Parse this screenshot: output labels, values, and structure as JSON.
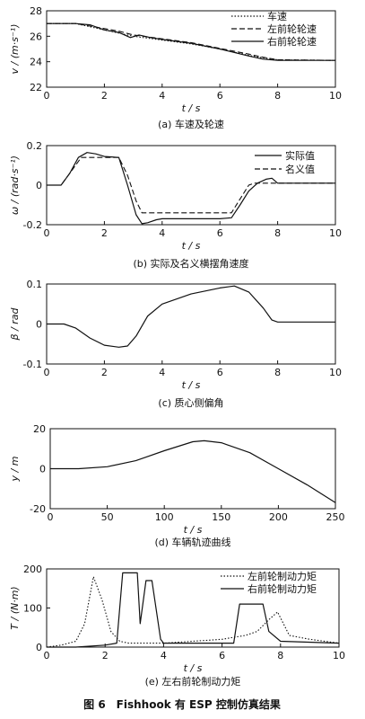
{
  "figure_caption": "图 6　Fishhook 有 ESP 控制仿真结果",
  "chart_data": [
    {
      "type": "line",
      "caption": "(a)  车速及轮速",
      "xlabel": "t / s",
      "ylabel": "v / (m·s⁻¹)",
      "xlim": [
        0,
        10
      ],
      "ylim": [
        22,
        28
      ],
      "xticks": [
        0,
        2,
        4,
        6,
        8,
        10
      ],
      "yticks": [
        22,
        24,
        26,
        28
      ],
      "legend_position": "top-right",
      "series": [
        {
          "name": "车速",
          "style": "dotted",
          "x": [
            0,
            1,
            2,
            3,
            4,
            5,
            6,
            7,
            7.5,
            8,
            10
          ],
          "y": [
            27,
            27,
            26.5,
            26,
            25.7,
            25.4,
            25,
            24.5,
            24.3,
            24.15,
            24.1
          ]
        },
        {
          "name": "左前轮轮速",
          "style": "dashed",
          "x": [
            0,
            1,
            1.5,
            2,
            2.5,
            3,
            4,
            5,
            6,
            7,
            7.5,
            8,
            10
          ],
          "y": [
            27,
            27,
            26.8,
            26.6,
            26.4,
            26.1,
            25.8,
            25.5,
            25.05,
            24.6,
            24.35,
            24.15,
            24.1
          ]
        },
        {
          "name": "右前轮轮速",
          "style": "solid",
          "x": [
            0,
            1,
            1.5,
            2,
            2.5,
            2.9,
            3.2,
            3.6,
            4,
            5,
            6,
            7,
            7.5,
            8,
            10
          ],
          "y": [
            27,
            27,
            26.9,
            26.5,
            26.3,
            25.9,
            26.1,
            25.9,
            25.75,
            25.45,
            25.0,
            24.45,
            24.2,
            24.1,
            24.1
          ]
        }
      ]
    },
    {
      "type": "line",
      "caption": "(b)  实际及名义横摆角速度",
      "xlabel": "t / s",
      "ylabel": "ω / (rad·s⁻¹)",
      "xlim": [
        0,
        10
      ],
      "ylim": [
        -0.2,
        0.2
      ],
      "xticks": [
        0,
        2,
        4,
        6,
        8,
        10
      ],
      "yticks": [
        -0.2,
        0,
        0.2
      ],
      "legend_position": "top-right",
      "series": [
        {
          "name": "实际值",
          "style": "solid",
          "x": [
            0,
            0.5,
            0.8,
            1.1,
            1.4,
            1.7,
            2.0,
            2.5,
            2.8,
            3.1,
            3.3,
            3.5,
            3.8,
            4,
            5,
            6,
            6.4,
            6.7,
            7.0,
            7.3,
            7.6,
            7.8,
            8.0,
            10
          ],
          "y": [
            0,
            0,
            0.06,
            0.14,
            0.165,
            0.158,
            0.145,
            0.14,
            0.0,
            -0.15,
            -0.195,
            -0.19,
            -0.175,
            -0.17,
            -0.17,
            -0.17,
            -0.165,
            -0.1,
            -0.03,
            0.01,
            0.03,
            0.035,
            0.01,
            0.01
          ]
        },
        {
          "name": "名义值",
          "style": "dashed",
          "x": [
            0,
            0.5,
            0.9,
            1.2,
            2.5,
            2.8,
            3.1,
            3.3,
            6.4,
            6.7,
            7.0,
            7.2,
            10
          ],
          "y": [
            0,
            0,
            0.08,
            0.14,
            0.14,
            0.05,
            -0.08,
            -0.14,
            -0.14,
            -0.07,
            0,
            0.01,
            0.01
          ]
        }
      ]
    },
    {
      "type": "line",
      "caption": "(c)  质心侧偏角",
      "xlabel": "t / s",
      "ylabel": "β / rad",
      "xlim": [
        0,
        10
      ],
      "ylim": [
        -0.1,
        0.1
      ],
      "xticks": [
        0,
        2,
        4,
        6,
        8,
        10
      ],
      "yticks": [
        -0.1,
        0,
        0.1
      ],
      "series": [
        {
          "name": "",
          "style": "solid",
          "x": [
            0,
            0.6,
            1,
            1.5,
            2,
            2.5,
            2.8,
            3.1,
            3.5,
            4,
            5,
            6,
            6.5,
            7.0,
            7.5,
            7.8,
            8,
            10
          ],
          "y": [
            0,
            0,
            -0.01,
            -0.035,
            -0.053,
            -0.058,
            -0.055,
            -0.03,
            0.02,
            0.05,
            0.075,
            0.09,
            0.095,
            0.08,
            0.04,
            0.01,
            0.005,
            0.005
          ]
        }
      ]
    },
    {
      "type": "line",
      "caption": "(d)  车辆轨迹曲线",
      "xlabel": "t / s",
      "ylabel": "y / m",
      "xlim": [
        0,
        250
      ],
      "ylim": [
        -20,
        20
      ],
      "xticks": [
        0,
        50,
        100,
        150,
        200,
        250
      ],
      "yticks": [
        -20,
        0,
        20
      ],
      "series": [
        {
          "name": "",
          "style": "solid",
          "x": [
            0,
            25,
            50,
            75,
            100,
            125,
            135,
            150,
            175,
            200,
            225,
            250
          ],
          "y": [
            0,
            0,
            1,
            4,
            9,
            13.5,
            14,
            13,
            8,
            0,
            -8,
            -17
          ]
        }
      ]
    },
    {
      "type": "line",
      "caption": "(e)  左右前轮制动力矩",
      "xlabel": "t / s",
      "ylabel": "T / (N·m)",
      "xlim": [
        0,
        10
      ],
      "ylim": [
        0,
        200
      ],
      "xticks": [
        0,
        2,
        4,
        6,
        8,
        10
      ],
      "yticks": [
        0,
        100,
        200
      ],
      "legend_position": "top-right",
      "series": [
        {
          "name": "左前轮制动力矩",
          "style": "dotted",
          "x": [
            0,
            0.5,
            1.0,
            1.3,
            1.6,
            1.9,
            2.2,
            2.5,
            2.8,
            3.1,
            3.4,
            3.7,
            4.0,
            5,
            6,
            6.4,
            6.8,
            7.2,
            7.6,
            7.9,
            8.3,
            9,
            10
          ],
          "y": [
            0,
            5,
            15,
            60,
            180,
            120,
            40,
            15,
            10,
            10,
            10,
            10,
            10,
            15,
            20,
            25,
            30,
            40,
            70,
            90,
            30,
            20,
            10
          ]
        },
        {
          "name": "右前轮制动力矩",
          "style": "solid",
          "x": [
            0,
            1.0,
            2.0,
            2.4,
            2.6,
            3.1,
            3.2,
            3.4,
            3.6,
            3.9,
            4.0,
            5,
            6,
            6.4,
            6.6,
            7.4,
            7.6,
            8.0,
            10
          ],
          "y": [
            0,
            0,
            5,
            10,
            190,
            190,
            60,
            170,
            170,
            20,
            10,
            10,
            10,
            10,
            110,
            110,
            40,
            15,
            10
          ]
        }
      ]
    }
  ]
}
